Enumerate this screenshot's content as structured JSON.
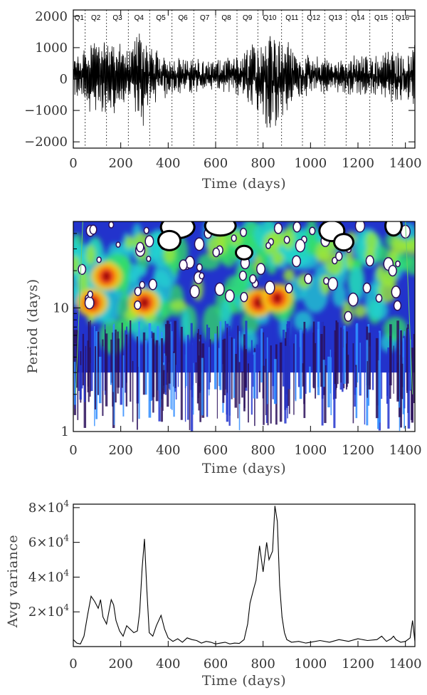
{
  "chart_data": [
    {
      "type": "line",
      "panel": "light-curve",
      "xlabel": "Time (days)",
      "ylabel": "",
      "xlim": [
        0,
        1440
      ],
      "ylim": [
        -2200,
        2200
      ],
      "x_ticks": [
        0,
        200,
        400,
        600,
        800,
        1000,
        1200,
        1400
      ],
      "y_ticks": [
        -2000,
        -1000,
        0,
        1000,
        2000
      ],
      "y_tick_labels": [
        "−2000",
        "−1000",
        "0",
        "1000",
        "2000"
      ],
      "quarters": [
        {
          "label": "Q1",
          "x": 50
        },
        {
          "label": "Q2",
          "x": 140
        },
        {
          "label": "Q3",
          "x": 232
        },
        {
          "label": "Q4",
          "x": 322
        },
        {
          "label": "Q5",
          "x": 416
        },
        {
          "label": "Q6",
          "x": 508
        },
        {
          "label": "Q7",
          "x": 600
        },
        {
          "label": "Q8",
          "x": 690
        },
        {
          "label": "Q9",
          "x": 778
        },
        {
          "label": "Q10",
          "x": 878
        },
        {
          "label": "Q11",
          "x": 966
        },
        {
          "label": "Q12",
          "x": 1060
        },
        {
          "label": "Q13",
          "x": 1150
        },
        {
          "label": "Q14",
          "x": 1250
        },
        {
          "label": "Q15",
          "x": 1345
        },
        {
          "label": "Q16",
          "x": 1430
        }
      ],
      "amplitude_envelope": {
        "x": [
          0,
          60,
          100,
          140,
          180,
          240,
          290,
          320,
          360,
          420,
          500,
          600,
          700,
          760,
          800,
          850,
          900,
          960,
          1040,
          1100,
          1200,
          1300,
          1350,
          1400,
          1440
        ],
        "amplitude": [
          600,
          900,
          1300,
          1250,
          1000,
          700,
          1600,
          800,
          700,
          550,
          500,
          450,
          600,
          1000,
          1700,
          1600,
          1000,
          600,
          550,
          500,
          600,
          600,
          800,
          700,
          900
        ]
      }
    },
    {
      "type": "heatmap",
      "panel": "wavelet-power",
      "xlabel": "Time (days)",
      "ylabel": "Period (days)",
      "xlim": [
        0,
        1440
      ],
      "ylim": [
        1,
        50
      ],
      "yscale": "log",
      "x_ticks": [
        0,
        200,
        400,
        600,
        800,
        1000,
        1200,
        1400
      ],
      "y_ticks": [
        1,
        10
      ],
      "colormap": [
        "#ffffff",
        "#2a0f5a",
        "#2233cc",
        "#2f8cff",
        "#22d0d0",
        "#33dd66",
        "#9be63a",
        "#f5c518",
        "#ff7a00",
        "#e31a1c",
        "#7a0000"
      ],
      "power_peaks": [
        {
          "time": 80,
          "period": 11
        },
        {
          "time": 140,
          "period": 18
        },
        {
          "time": 300,
          "period": 11
        },
        {
          "time": 780,
          "period": 11
        },
        {
          "time": 860,
          "period": 12
        }
      ]
    },
    {
      "type": "line",
      "panel": "average-variance",
      "xlabel": "Time (days)",
      "ylabel": "Avg variance",
      "xlim": [
        0,
        1440
      ],
      "ylim": [
        0,
        82000
      ],
      "x_ticks": [
        0,
        200,
        400,
        600,
        800,
        1000,
        1200,
        1400
      ],
      "y_ticks": [
        20000,
        40000,
        60000,
        80000
      ],
      "y_tick_mantissas": [
        "2",
        "4",
        "6",
        "8"
      ],
      "y_tick_base": "10",
      "y_tick_exponent": "4",
      "x": [
        0,
        15,
        30,
        45,
        60,
        75,
        90,
        105,
        115,
        125,
        140,
        150,
        160,
        170,
        180,
        195,
        210,
        225,
        240,
        255,
        270,
        280,
        290,
        300,
        310,
        320,
        335,
        350,
        370,
        385,
        400,
        420,
        440,
        460,
        480,
        500,
        520,
        540,
        560,
        580,
        600,
        620,
        640,
        660,
        680,
        700,
        720,
        735,
        745,
        760,
        770,
        785,
        800,
        815,
        825,
        840,
        850,
        860,
        870,
        880,
        890,
        900,
        920,
        950,
        980,
        1000,
        1040,
        1080,
        1120,
        1160,
        1200,
        1240,
        1280,
        1300,
        1320,
        1340,
        1350,
        1360,
        1380,
        1400,
        1420,
        1430,
        1440
      ],
      "y": [
        4000,
        2000,
        1500,
        6000,
        18000,
        29000,
        26000,
        22000,
        27000,
        17000,
        13000,
        20000,
        27000,
        24000,
        15000,
        9000,
        6000,
        12000,
        10000,
        8000,
        9000,
        20000,
        45000,
        62000,
        33000,
        8000,
        6000,
        12000,
        18000,
        10000,
        5000,
        3000,
        4500,
        2500,
        5000,
        4000,
        3500,
        2000,
        3000,
        2500,
        1500,
        2000,
        2500,
        1500,
        2000,
        1800,
        4000,
        13000,
        25000,
        33000,
        38000,
        58000,
        43000,
        60000,
        50000,
        55000,
        81000,
        72000,
        35000,
        17000,
        8000,
        4000,
        2500,
        3000,
        2000,
        2500,
        3500,
        2500,
        4000,
        3000,
        4500,
        3500,
        4000,
        6000,
        3000,
        4500,
        6000,
        4000,
        2500,
        3000,
        5000,
        15000,
        3000
      ]
    }
  ]
}
